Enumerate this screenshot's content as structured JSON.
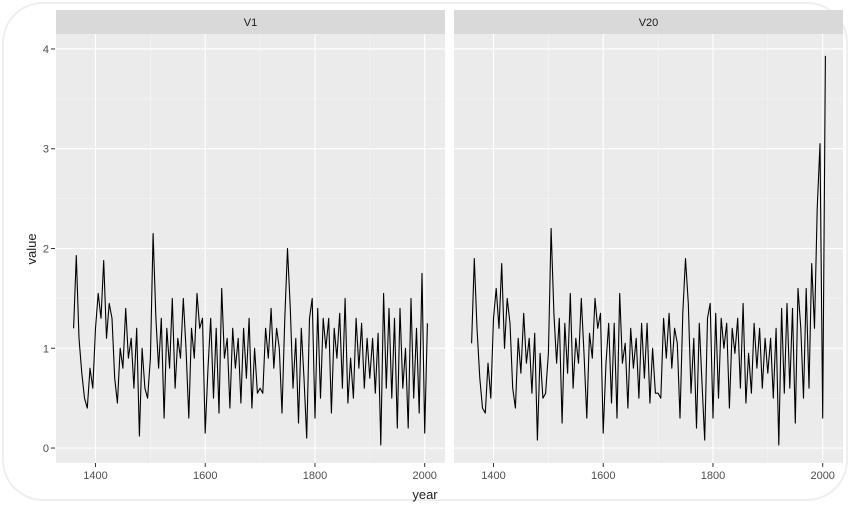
{
  "chart_data": {
    "type": "line",
    "xlabel": "year",
    "ylabel": "value",
    "ylim": [
      -0.15,
      4.15
    ],
    "xlim": [
      1328,
      2037
    ],
    "yticks": [
      0,
      1,
      2,
      3,
      4
    ],
    "xticks": [
      1400,
      1600,
      1800,
      2000
    ],
    "grid": true,
    "line_color": "#000000",
    "panel_background": "#EBEBEB",
    "strip_background": "#D9D9D9",
    "x": [
      1360,
      1365,
      1370,
      1375,
      1380,
      1385,
      1390,
      1395,
      1400,
      1405,
      1410,
      1415,
      1420,
      1425,
      1430,
      1435,
      1440,
      1445,
      1450,
      1455,
      1460,
      1465,
      1470,
      1475,
      1480,
      1485,
      1490,
      1495,
      1500,
      1505,
      1510,
      1515,
      1520,
      1525,
      1530,
      1535,
      1540,
      1545,
      1550,
      1555,
      1560,
      1565,
      1570,
      1575,
      1580,
      1585,
      1590,
      1595,
      1600,
      1605,
      1610,
      1615,
      1620,
      1625,
      1630,
      1635,
      1640,
      1645,
      1650,
      1655,
      1660,
      1665,
      1670,
      1675,
      1680,
      1685,
      1690,
      1695,
      1700,
      1705,
      1710,
      1715,
      1720,
      1725,
      1730,
      1735,
      1740,
      1745,
      1750,
      1755,
      1760,
      1765,
      1770,
      1775,
      1780,
      1785,
      1790,
      1795,
      1800,
      1805,
      1810,
      1815,
      1820,
      1825,
      1830,
      1835,
      1840,
      1845,
      1850,
      1855,
      1860,
      1865,
      1870,
      1875,
      1880,
      1885,
      1890,
      1895,
      1900,
      1905,
      1910,
      1915,
      1920,
      1925,
      1930,
      1935,
      1940,
      1945,
      1950,
      1955,
      1960,
      1965,
      1970,
      1975,
      1980,
      1985,
      1990,
      1995,
      2000,
      2005
    ],
    "panels": [
      {
        "name": "V1",
        "values": [
          1.2,
          1.93,
          1.1,
          0.75,
          0.5,
          0.4,
          0.8,
          0.6,
          1.2,
          1.55,
          1.3,
          1.88,
          1.1,
          1.45,
          1.3,
          0.7,
          0.45,
          1.0,
          0.8,
          1.4,
          0.9,
          1.1,
          0.6,
          1.2,
          0.12,
          1.0,
          0.6,
          0.5,
          0.9,
          2.15,
          1.3,
          0.8,
          1.3,
          0.3,
          1.2,
          0.8,
          1.5,
          0.6,
          1.1,
          0.9,
          1.5,
          1.0,
          0.3,
          1.2,
          0.9,
          1.55,
          1.2,
          1.3,
          0.15,
          0.8,
          1.3,
          0.5,
          1.2,
          0.35,
          1.6,
          0.9,
          1.1,
          0.4,
          1.2,
          0.8,
          1.1,
          0.45,
          1.2,
          0.7,
          1.3,
          0.4,
          1.0,
          0.55,
          0.6,
          0.55,
          1.2,
          0.9,
          1.4,
          0.8,
          1.2,
          1.0,
          0.35,
          1.3,
          2.0,
          1.4,
          0.6,
          1.1,
          0.25,
          1.2,
          0.7,
          0.1,
          1.3,
          1.5,
          0.3,
          1.4,
          0.5,
          1.3,
          1.0,
          1.3,
          0.35,
          1.2,
          0.9,
          1.35,
          0.6,
          1.5,
          0.45,
          0.9,
          0.5,
          1.3,
          0.8,
          1.25,
          0.6,
          1.1,
          0.7,
          1.1,
          0.55,
          1.15,
          0.03,
          1.55,
          0.6,
          1.4,
          0.5,
          1.3,
          0.2,
          1.4,
          0.6,
          1.0,
          0.2,
          1.5,
          0.5,
          1.2,
          0.35,
          1.75,
          0.15,
          1.25
        ]
      },
      {
        "name": "V20",
        "values": [
          1.05,
          1.9,
          1.2,
          0.7,
          0.4,
          0.35,
          0.85,
          0.5,
          1.3,
          1.6,
          1.2,
          1.85,
          1.0,
          1.5,
          1.25,
          0.6,
          0.4,
          1.1,
          0.75,
          1.35,
          0.85,
          1.1,
          0.55,
          1.15,
          0.08,
          0.95,
          0.5,
          0.55,
          0.95,
          2.2,
          1.35,
          0.85,
          1.3,
          0.25,
          1.25,
          0.75,
          1.55,
          0.6,
          1.1,
          0.85,
          1.5,
          0.95,
          0.3,
          1.15,
          0.9,
          1.5,
          1.2,
          1.35,
          0.15,
          0.85,
          1.25,
          0.45,
          1.25,
          0.3,
          1.55,
          0.85,
          1.05,
          0.4,
          1.2,
          0.8,
          1.1,
          0.5,
          1.25,
          0.7,
          1.25,
          0.45,
          1.0,
          0.55,
          0.55,
          0.5,
          1.3,
          0.9,
          1.35,
          0.8,
          1.2,
          1.05,
          0.3,
          1.35,
          1.9,
          1.45,
          0.55,
          1.1,
          0.2,
          1.25,
          0.65,
          0.08,
          1.3,
          1.45,
          0.3,
          1.35,
          0.5,
          1.3,
          1.0,
          1.25,
          0.4,
          1.2,
          0.95,
          1.3,
          0.6,
          1.45,
          0.45,
          0.95,
          0.55,
          1.25,
          0.8,
          1.2,
          0.6,
          1.1,
          0.75,
          1.1,
          0.5,
          1.2,
          0.03,
          1.4,
          0.55,
          1.45,
          0.6,
          1.4,
          0.25,
          1.6,
          1.2,
          0.5,
          1.6,
          0.6,
          1.85,
          1.2,
          2.4,
          3.05,
          0.3,
          3.93
        ]
      }
    ]
  }
}
